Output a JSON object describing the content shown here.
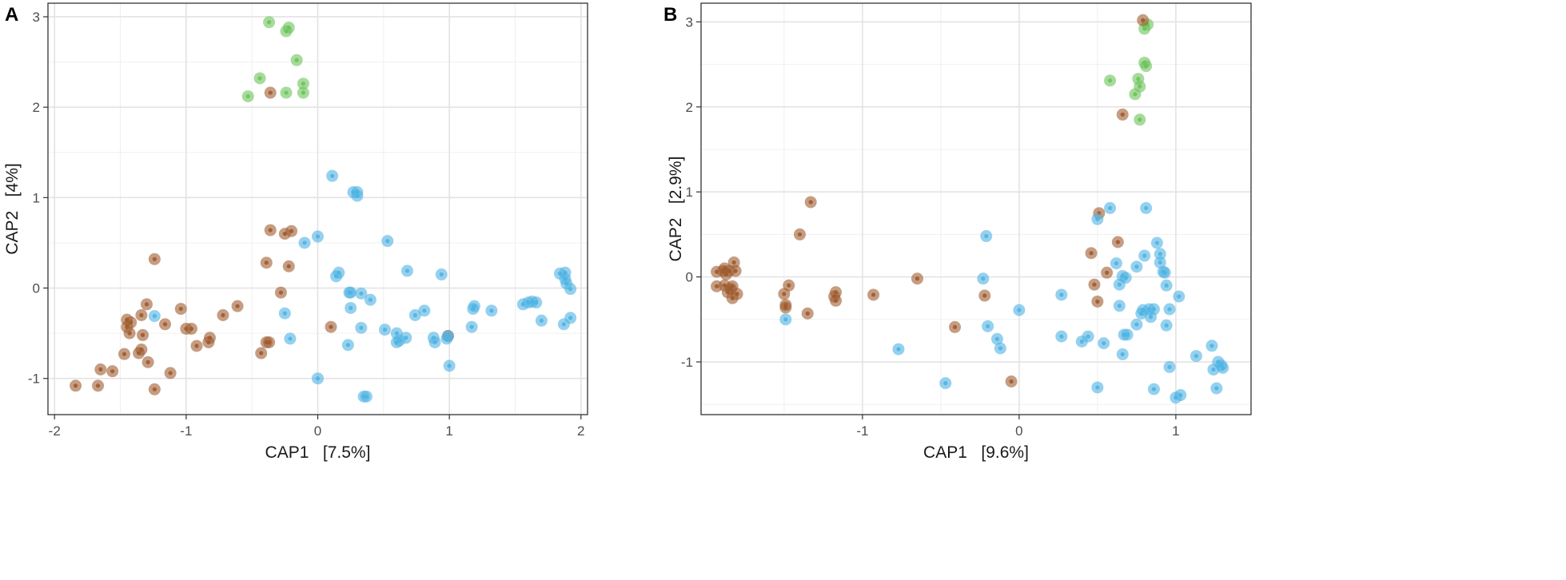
{
  "colors": {
    "green": "#6bc35a",
    "brown": "#9e5b2f",
    "blue": "#4fb3e3"
  },
  "chart_data": [
    {
      "type": "scatter",
      "panel_label": "A",
      "xlabel": "CAP1   [7.5%]",
      "ylabel": "CAP2   [4%]",
      "xlim": [
        -2.05,
        2.05
      ],
      "ylim": [
        -1.4,
        3.15
      ],
      "xticks": [
        {
          "v": -2,
          "label": "-2"
        },
        {
          "v": -1,
          "label": "-1"
        },
        {
          "v": 0,
          "label": "0"
        },
        {
          "v": 1,
          "label": "1"
        },
        {
          "v": 2,
          "label": "2"
        }
      ],
      "yticks": [
        {
          "v": -1,
          "label": "-1"
        },
        {
          "v": 0,
          "label": "0"
        },
        {
          "v": 1,
          "label": "1"
        },
        {
          "v": 2,
          "label": "2"
        },
        {
          "v": 3,
          "label": "3"
        }
      ],
      "series": [
        {
          "name": "green",
          "color": "#6bc35a",
          "points": [
            [
              -0.37,
              2.94
            ],
            [
              -0.22,
              2.88
            ],
            [
              -0.24,
              2.84
            ],
            [
              -0.16,
              2.52
            ],
            [
              -0.44,
              2.32
            ],
            [
              -0.11,
              2.26
            ],
            [
              -0.53,
              2.12
            ],
            [
              -0.24,
              2.16
            ],
            [
              -0.11,
              2.16
            ]
          ]
        },
        {
          "name": "brown",
          "color": "#9e5b2f",
          "points": [
            [
              -0.36,
              2.16
            ],
            [
              -1.24,
              0.32
            ],
            [
              -0.36,
              0.64
            ],
            [
              -0.25,
              0.6
            ],
            [
              -0.2,
              0.63
            ],
            [
              -0.39,
              0.28
            ],
            [
              -0.22,
              0.24
            ],
            [
              -0.28,
              -0.05
            ],
            [
              -0.61,
              -0.2
            ],
            [
              -0.72,
              -0.3
            ],
            [
              -1.04,
              -0.23
            ],
            [
              -1.3,
              -0.18
            ],
            [
              -1.34,
              -0.3
            ],
            [
              -1.45,
              -0.35
            ],
            [
              -1.42,
              -0.38
            ],
            [
              -1.45,
              -0.43
            ],
            [
              -1.43,
              -0.5
            ],
            [
              -1.16,
              -0.4
            ],
            [
              -1.0,
              -0.45
            ],
            [
              -0.96,
              -0.45
            ],
            [
              -1.33,
              -0.52
            ],
            [
              -0.82,
              -0.55
            ],
            [
              -0.83,
              -0.6
            ],
            [
              -0.92,
              -0.64
            ],
            [
              -1.34,
              -0.68
            ],
            [
              -1.36,
              -0.72
            ],
            [
              -1.47,
              -0.73
            ],
            [
              -1.29,
              -0.82
            ],
            [
              -1.65,
              -0.9
            ],
            [
              -1.56,
              -0.92
            ],
            [
              -1.12,
              -0.94
            ],
            [
              -1.84,
              -1.08
            ],
            [
              -1.67,
              -1.08
            ],
            [
              -1.24,
              -1.12
            ],
            [
              -0.39,
              -0.6
            ],
            [
              -0.37,
              -0.6
            ],
            [
              -0.43,
              -0.72
            ],
            [
              0.1,
              -0.43
            ],
            [
              0.99,
              -0.53
            ]
          ]
        },
        {
          "name": "blue",
          "color": "#4fb3e3",
          "points": [
            [
              0.11,
              1.24
            ],
            [
              0.27,
              1.06
            ],
            [
              0.3,
              1.06
            ],
            [
              0.3,
              1.02
            ],
            [
              0.0,
              0.57
            ],
            [
              -0.1,
              0.5
            ],
            [
              0.53,
              0.52
            ],
            [
              0.14,
              0.13
            ],
            [
              0.16,
              0.17
            ],
            [
              0.68,
              0.19
            ],
            [
              0.94,
              0.15
            ],
            [
              0.24,
              -0.05
            ],
            [
              0.25,
              -0.05
            ],
            [
              0.33,
              -0.06
            ],
            [
              0.4,
              -0.13
            ],
            [
              0.25,
              -0.22
            ],
            [
              -0.25,
              -0.28
            ],
            [
              0.81,
              -0.25
            ],
            [
              0.74,
              -0.3
            ],
            [
              1.18,
              -0.23
            ],
            [
              1.19,
              -0.2
            ],
            [
              1.32,
              -0.25
            ],
            [
              1.56,
              -0.18
            ],
            [
              1.6,
              -0.16
            ],
            [
              1.63,
              -0.15
            ],
            [
              1.66,
              -0.16
            ],
            [
              1.84,
              0.16
            ],
            [
              1.88,
              0.17
            ],
            [
              1.88,
              0.1
            ],
            [
              1.89,
              0.05
            ],
            [
              1.92,
              -0.01
            ],
            [
              1.7,
              -0.36
            ],
            [
              1.87,
              -0.4
            ],
            [
              1.92,
              -0.33
            ],
            [
              -1.24,
              -0.31
            ],
            [
              0.33,
              -0.44
            ],
            [
              0.51,
              -0.46
            ],
            [
              0.6,
              -0.5
            ],
            [
              0.6,
              -0.6
            ],
            [
              0.62,
              -0.58
            ],
            [
              0.67,
              -0.55
            ],
            [
              0.88,
              -0.55
            ],
            [
              0.89,
              -0.6
            ],
            [
              0.99,
              -0.53
            ],
            [
              0.98,
              -0.56
            ],
            [
              1.17,
              -0.43
            ],
            [
              0.23,
              -0.63
            ],
            [
              -0.21,
              -0.56
            ],
            [
              1.0,
              -0.86
            ],
            [
              0.0,
              -1.0
            ],
            [
              0.35,
              -1.2
            ],
            [
              0.37,
              -1.2
            ]
          ]
        }
      ]
    },
    {
      "type": "scatter",
      "panel_label": "B",
      "xlabel": "CAP1   [9.6%]",
      "ylabel": "CAP2   [2.9%]",
      "xlim": [
        -2.03,
        1.48
      ],
      "ylim": [
        -1.62,
        3.22
      ],
      "xticks": [
        {
          "v": -1,
          "label": "-1"
        },
        {
          "v": 0,
          "label": "0"
        },
        {
          "v": 1,
          "label": "1"
        }
      ],
      "yticks": [
        {
          "v": -1,
          "label": "-1"
        },
        {
          "v": 0,
          "label": "0"
        },
        {
          "v": 1,
          "label": "1"
        },
        {
          "v": 2,
          "label": "2"
        },
        {
          "v": 3,
          "label": "3"
        }
      ],
      "series": [
        {
          "name": "green",
          "color": "#6bc35a",
          "points": [
            [
              0.82,
              2.97
            ],
            [
              0.8,
              2.92
            ],
            [
              0.8,
              2.52
            ],
            [
              0.81,
              2.48
            ],
            [
              0.58,
              2.31
            ],
            [
              0.76,
              2.33
            ],
            [
              0.77,
              2.24
            ],
            [
              0.74,
              2.15
            ],
            [
              0.77,
              1.85
            ]
          ]
        },
        {
          "name": "brown",
          "color": "#9e5b2f",
          "points": [
            [
              0.79,
              3.02
            ],
            [
              0.66,
              1.91
            ],
            [
              -1.33,
              0.88
            ],
            [
              -1.4,
              0.5
            ],
            [
              0.51,
              0.75
            ],
            [
              0.46,
              0.28
            ],
            [
              0.56,
              0.05
            ],
            [
              0.63,
              0.41
            ],
            [
              -1.93,
              0.06
            ],
            [
              -1.89,
              0.07
            ],
            [
              -1.88,
              0.1
            ],
            [
              -1.87,
              0.03
            ],
            [
              -1.85,
              0.07
            ],
            [
              -1.82,
              0.17
            ],
            [
              -1.81,
              0.07
            ],
            [
              -1.93,
              -0.11
            ],
            [
              -1.88,
              -0.1
            ],
            [
              -1.86,
              -0.18
            ],
            [
              -1.84,
              -0.14
            ],
            [
              -1.83,
              -0.25
            ],
            [
              -1.83,
              -0.11
            ],
            [
              -1.8,
              -0.2
            ],
            [
              -1.47,
              -0.1
            ],
            [
              -1.5,
              -0.2
            ],
            [
              -1.49,
              -0.33
            ],
            [
              -1.49,
              -0.36
            ],
            [
              -1.35,
              -0.43
            ],
            [
              -1.17,
              -0.18
            ],
            [
              -1.18,
              -0.23
            ],
            [
              -1.17,
              -0.28
            ],
            [
              -0.93,
              -0.21
            ],
            [
              -0.65,
              -0.02
            ],
            [
              -0.22,
              -0.22
            ],
            [
              0.48,
              -0.09
            ],
            [
              0.5,
              -0.29
            ],
            [
              -0.41,
              -0.59
            ],
            [
              -0.05,
              -1.23
            ]
          ]
        },
        {
          "name": "blue",
          "color": "#4fb3e3",
          "points": [
            [
              -0.21,
              0.48
            ],
            [
              0.58,
              0.81
            ],
            [
              0.81,
              0.81
            ],
            [
              0.5,
              0.68
            ],
            [
              0.88,
              0.4
            ],
            [
              0.9,
              0.27
            ],
            [
              0.8,
              0.25
            ],
            [
              0.62,
              0.16
            ],
            [
              0.9,
              0.17
            ],
            [
              0.92,
              0.06
            ],
            [
              0.93,
              0.05
            ],
            [
              0.66,
              0.01
            ],
            [
              0.75,
              0.12
            ],
            [
              0.68,
              -0.01
            ],
            [
              0.64,
              -0.09
            ],
            [
              0.94,
              -0.1
            ],
            [
              -0.23,
              -0.02
            ],
            [
              0.27,
              -0.21
            ],
            [
              0.64,
              -0.34
            ],
            [
              0.79,
              -0.39
            ],
            [
              0.83,
              -0.38
            ],
            [
              0.86,
              -0.38
            ],
            [
              0.78,
              -0.43
            ],
            [
              0.84,
              -0.47
            ],
            [
              0.75,
              -0.56
            ],
            [
              0.94,
              -0.57
            ],
            [
              0.96,
              -0.38
            ],
            [
              1.02,
              -0.23
            ],
            [
              0.0,
              -0.39
            ],
            [
              -0.2,
              -0.58
            ],
            [
              -0.14,
              -0.73
            ],
            [
              -0.12,
              -0.84
            ],
            [
              0.27,
              -0.7
            ],
            [
              0.4,
              -0.76
            ],
            [
              0.44,
              -0.7
            ],
            [
              0.54,
              -0.78
            ],
            [
              0.67,
              -0.68
            ],
            [
              0.69,
              -0.68
            ],
            [
              0.66,
              -0.91
            ],
            [
              -1.49,
              -0.5
            ],
            [
              -0.77,
              -0.85
            ],
            [
              -0.47,
              -1.25
            ],
            [
              0.5,
              -1.3
            ],
            [
              0.86,
              -1.32
            ],
            [
              0.96,
              -1.06
            ],
            [
              1.0,
              -1.42
            ],
            [
              1.03,
              -1.39
            ],
            [
              1.13,
              -0.93
            ],
            [
              1.23,
              -0.81
            ],
            [
              1.24,
              -1.09
            ],
            [
              1.27,
              -1.0
            ],
            [
              1.29,
              -1.04
            ],
            [
              1.3,
              -1.07
            ],
            [
              1.26,
              -1.31
            ]
          ]
        }
      ]
    }
  ]
}
